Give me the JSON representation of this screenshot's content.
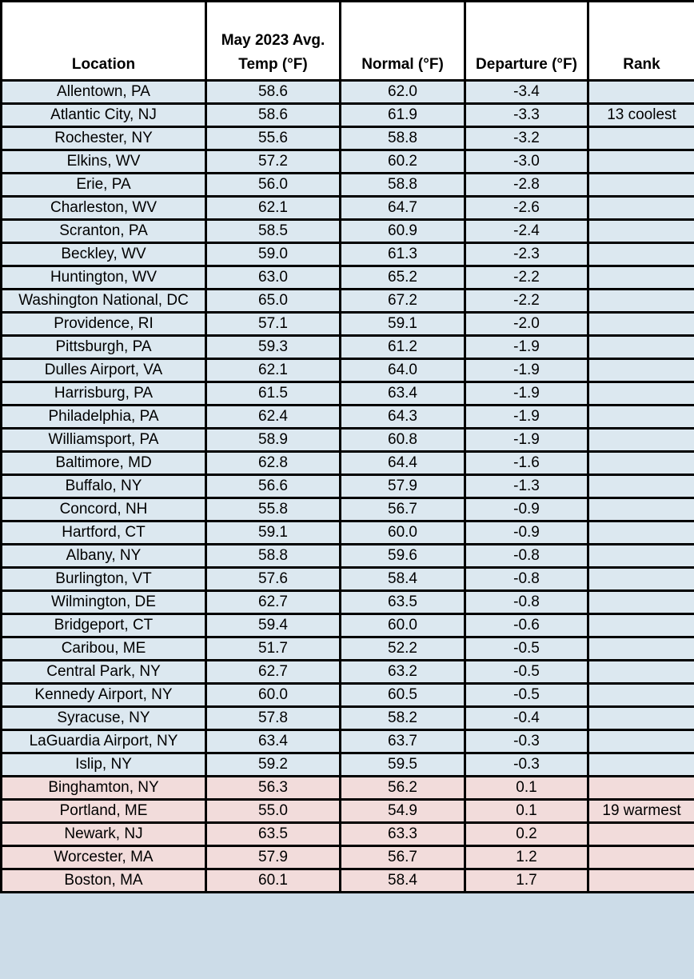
{
  "colors": {
    "cool_row": "#dce8f0",
    "warm_row": "#f2dcdb",
    "header_bg": "#ffffff",
    "grid_border": "#000000",
    "bottom_sliver": "#ccdce8",
    "text": "#000000"
  },
  "header": {
    "location": "Location",
    "temp_line1": "May 2023 Avg.",
    "temp_line2": "Temp (°F)",
    "normal": "Normal (°F)",
    "departure": "Departure (°F)",
    "rank": "Rank"
  },
  "chart_data": {
    "type": "table",
    "columns": [
      "Location",
      "May 2023 Avg. Temp (°F)",
      "Normal (°F)",
      "Departure (°F)",
      "Rank"
    ],
    "rows": [
      {
        "location": "Allentown, PA",
        "avg_temp": "58.6",
        "normal": "62.0",
        "departure": "-3.4",
        "rank": "",
        "shade": "cool"
      },
      {
        "location": "Atlantic City, NJ",
        "avg_temp": "58.6",
        "normal": "61.9",
        "departure": "-3.3",
        "rank": "13 coolest",
        "shade": "cool"
      },
      {
        "location": "Rochester, NY",
        "avg_temp": "55.6",
        "normal": "58.8",
        "departure": "-3.2",
        "rank": "",
        "shade": "cool"
      },
      {
        "location": "Elkins, WV",
        "avg_temp": "57.2",
        "normal": "60.2",
        "departure": "-3.0",
        "rank": "",
        "shade": "cool"
      },
      {
        "location": "Erie, PA",
        "avg_temp": "56.0",
        "normal": "58.8",
        "departure": "-2.8",
        "rank": "",
        "shade": "cool"
      },
      {
        "location": "Charleston, WV",
        "avg_temp": "62.1",
        "normal": "64.7",
        "departure": "-2.6",
        "rank": "",
        "shade": "cool"
      },
      {
        "location": "Scranton, PA",
        "avg_temp": "58.5",
        "normal": "60.9",
        "departure": "-2.4",
        "rank": "",
        "shade": "cool"
      },
      {
        "location": "Beckley, WV",
        "avg_temp": "59.0",
        "normal": "61.3",
        "departure": "-2.3",
        "rank": "",
        "shade": "cool"
      },
      {
        "location": "Huntington, WV",
        "avg_temp": "63.0",
        "normal": "65.2",
        "departure": "-2.2",
        "rank": "",
        "shade": "cool"
      },
      {
        "location": "Washington National, DC",
        "avg_temp": "65.0",
        "normal": "67.2",
        "departure": "-2.2",
        "rank": "",
        "shade": "cool"
      },
      {
        "location": "Providence, RI",
        "avg_temp": "57.1",
        "normal": "59.1",
        "departure": "-2.0",
        "rank": "",
        "shade": "cool"
      },
      {
        "location": "Pittsburgh, PA",
        "avg_temp": "59.3",
        "normal": "61.2",
        "departure": "-1.9",
        "rank": "",
        "shade": "cool"
      },
      {
        "location": "Dulles Airport, VA",
        "avg_temp": "62.1",
        "normal": "64.0",
        "departure": "-1.9",
        "rank": "",
        "shade": "cool"
      },
      {
        "location": "Harrisburg, PA",
        "avg_temp": "61.5",
        "normal": "63.4",
        "departure": "-1.9",
        "rank": "",
        "shade": "cool"
      },
      {
        "location": "Philadelphia, PA",
        "avg_temp": "62.4",
        "normal": "64.3",
        "departure": "-1.9",
        "rank": "",
        "shade": "cool"
      },
      {
        "location": "Williamsport, PA",
        "avg_temp": "58.9",
        "normal": "60.8",
        "departure": "-1.9",
        "rank": "",
        "shade": "cool"
      },
      {
        "location": "Baltimore, MD",
        "avg_temp": "62.8",
        "normal": "64.4",
        "departure": "-1.6",
        "rank": "",
        "shade": "cool"
      },
      {
        "location": "Buffalo, NY",
        "avg_temp": "56.6",
        "normal": "57.9",
        "departure": "-1.3",
        "rank": "",
        "shade": "cool"
      },
      {
        "location": "Concord, NH",
        "avg_temp": "55.8",
        "normal": "56.7",
        "departure": "-0.9",
        "rank": "",
        "shade": "cool"
      },
      {
        "location": "Hartford, CT",
        "avg_temp": "59.1",
        "normal": "60.0",
        "departure": "-0.9",
        "rank": "",
        "shade": "cool"
      },
      {
        "location": "Albany, NY",
        "avg_temp": "58.8",
        "normal": "59.6",
        "departure": "-0.8",
        "rank": "",
        "shade": "cool"
      },
      {
        "location": "Burlington, VT",
        "avg_temp": "57.6",
        "normal": "58.4",
        "departure": "-0.8",
        "rank": "",
        "shade": "cool"
      },
      {
        "location": "Wilmington, DE",
        "avg_temp": "62.7",
        "normal": "63.5",
        "departure": "-0.8",
        "rank": "",
        "shade": "cool"
      },
      {
        "location": "Bridgeport, CT",
        "avg_temp": "59.4",
        "normal": "60.0",
        "departure": "-0.6",
        "rank": "",
        "shade": "cool"
      },
      {
        "location": "Caribou, ME",
        "avg_temp": "51.7",
        "normal": "52.2",
        "departure": "-0.5",
        "rank": "",
        "shade": "cool"
      },
      {
        "location": "Central Park, NY",
        "avg_temp": "62.7",
        "normal": "63.2",
        "departure": "-0.5",
        "rank": "",
        "shade": "cool"
      },
      {
        "location": "Kennedy Airport, NY",
        "avg_temp": "60.0",
        "normal": "60.5",
        "departure": "-0.5",
        "rank": "",
        "shade": "cool"
      },
      {
        "location": "Syracuse, NY",
        "avg_temp": "57.8",
        "normal": "58.2",
        "departure": "-0.4",
        "rank": "",
        "shade": "cool"
      },
      {
        "location": "LaGuardia Airport, NY",
        "avg_temp": "63.4",
        "normal": "63.7",
        "departure": "-0.3",
        "rank": "",
        "shade": "cool"
      },
      {
        "location": "Islip, NY",
        "avg_temp": "59.2",
        "normal": "59.5",
        "departure": "-0.3",
        "rank": "",
        "shade": "cool"
      },
      {
        "location": "Binghamton, NY",
        "avg_temp": "56.3",
        "normal": "56.2",
        "departure": "0.1",
        "rank": "",
        "shade": "warm"
      },
      {
        "location": "Portland, ME",
        "avg_temp": "55.0",
        "normal": "54.9",
        "departure": "0.1",
        "rank": "19 warmest",
        "shade": "warm"
      },
      {
        "location": "Newark, NJ",
        "avg_temp": "63.5",
        "normal": "63.3",
        "departure": "0.2",
        "rank": "",
        "shade": "warm"
      },
      {
        "location": "Worcester, MA",
        "avg_temp": "57.9",
        "normal": "56.7",
        "departure": "1.2",
        "rank": "",
        "shade": "warm"
      },
      {
        "location": "Boston, MA",
        "avg_temp": "60.1",
        "normal": "58.4",
        "departure": "1.7",
        "rank": "",
        "shade": "warm"
      }
    ]
  }
}
